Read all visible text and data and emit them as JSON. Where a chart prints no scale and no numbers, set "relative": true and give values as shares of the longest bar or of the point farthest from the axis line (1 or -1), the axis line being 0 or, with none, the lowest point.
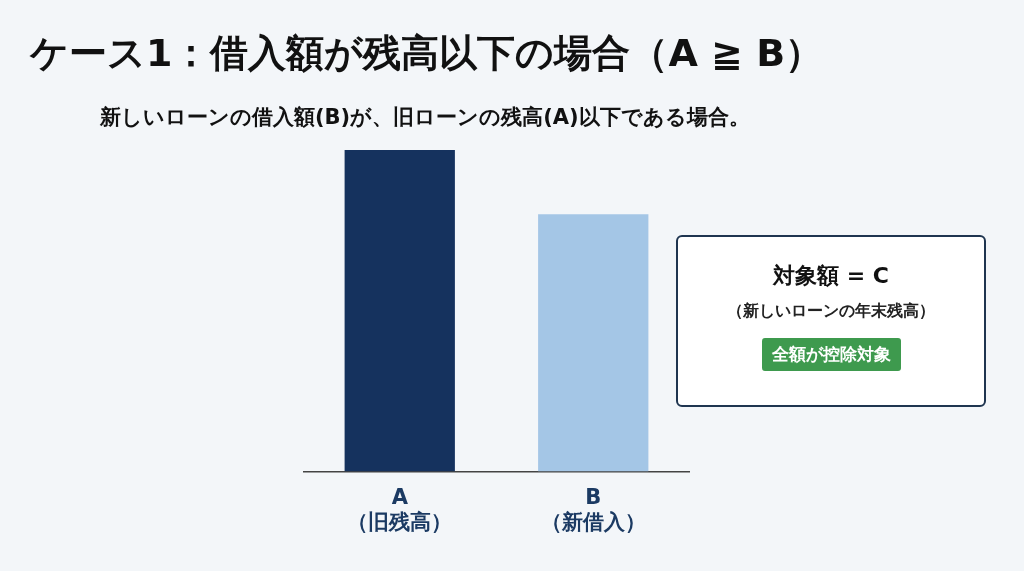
{
  "chart_data": {
    "type": "bar",
    "title": "ケース1：借入額が残高以下の場合（A ≧ B）",
    "subtitle": "新しいローンの借入額(B)が、旧ローンの残高(A)以下である場合。",
    "categories": [
      "A\n（旧残高）",
      "B\n（新借入）"
    ],
    "values": [
      1,
      0.8
    ],
    "colors": [
      "#15325e",
      "#a4c6e6"
    ],
    "relative": true,
    "grid": false,
    "legend": false,
    "annotations": [
      "対象額 = C",
      "（新しいローンの年末残高）",
      "全額が控除対象"
    ]
  }
}
